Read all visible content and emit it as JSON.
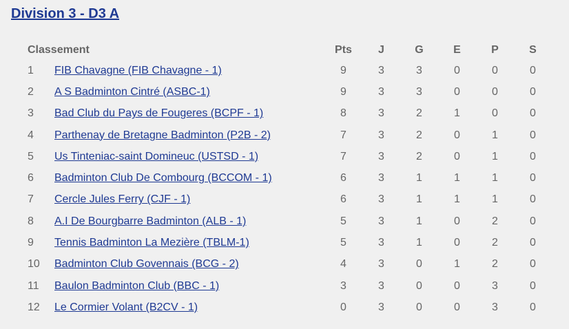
{
  "title": "Division 3 - D3 A",
  "headers": {
    "classement": "Classement",
    "pts": "Pts",
    "j": "J",
    "g": "G",
    "e": "E",
    "p": "P",
    "s": "S"
  },
  "colors": {
    "link": "#1f3a93",
    "text": "#666666",
    "background": "#f0f0f0"
  },
  "rows": [
    {
      "rank": "1",
      "team": "FIB Chavagne (FIB Chavagne - 1)",
      "pts": "9",
      "j": "3",
      "g": "3",
      "e": "0",
      "p": "0",
      "s": "0"
    },
    {
      "rank": "2",
      "team": "A S Badminton Cintré (ASBC-1)",
      "pts": "9",
      "j": "3",
      "g": "3",
      "e": "0",
      "p": "0",
      "s": "0"
    },
    {
      "rank": "3",
      "team": "Bad Club du Pays de Fougeres (BCPF - 1)",
      "pts": "8",
      "j": "3",
      "g": "2",
      "e": "1",
      "p": "0",
      "s": "0"
    },
    {
      "rank": "4",
      "team": "Parthenay de Bretagne Badminton (P2B - 2)",
      "pts": "7",
      "j": "3",
      "g": "2",
      "e": "0",
      "p": "1",
      "s": "0"
    },
    {
      "rank": "5",
      "team": "Us Tinteniac-saint Domineuc (USTSD - 1)",
      "pts": "7",
      "j": "3",
      "g": "2",
      "e": "0",
      "p": "1",
      "s": "0"
    },
    {
      "rank": "6",
      "team": "Badminton Club De Combourg (BCCOM - 1)",
      "pts": "6",
      "j": "3",
      "g": "1",
      "e": "1",
      "p": "1",
      "s": "0"
    },
    {
      "rank": "7",
      "team": "Cercle Jules Ferry (CJF - 1)",
      "pts": "6",
      "j": "3",
      "g": "1",
      "e": "1",
      "p": "1",
      "s": "0"
    },
    {
      "rank": "8",
      "team": "A.I De Bourgbarre Badminton (ALB - 1)",
      "pts": "5",
      "j": "3",
      "g": "1",
      "e": "0",
      "p": "2",
      "s": "0"
    },
    {
      "rank": "9",
      "team": "Tennis Badminton La Mezière (TBLM-1)",
      "pts": "5",
      "j": "3",
      "g": "1",
      "e": "0",
      "p": "2",
      "s": "0"
    },
    {
      "rank": "10",
      "team": "Badminton Club Govennais (BCG - 2)",
      "pts": "4",
      "j": "3",
      "g": "0",
      "e": "1",
      "p": "2",
      "s": "0"
    },
    {
      "rank": "11",
      "team": "Baulon Badminton Club (BBC - 1)",
      "pts": "3",
      "j": "3",
      "g": "0",
      "e": "0",
      "p": "3",
      "s": "0"
    },
    {
      "rank": "12",
      "team": "Le Cormier Volant (B2CV - 1)",
      "pts": "0",
      "j": "3",
      "g": "0",
      "e": "0",
      "p": "3",
      "s": "0"
    }
  ]
}
